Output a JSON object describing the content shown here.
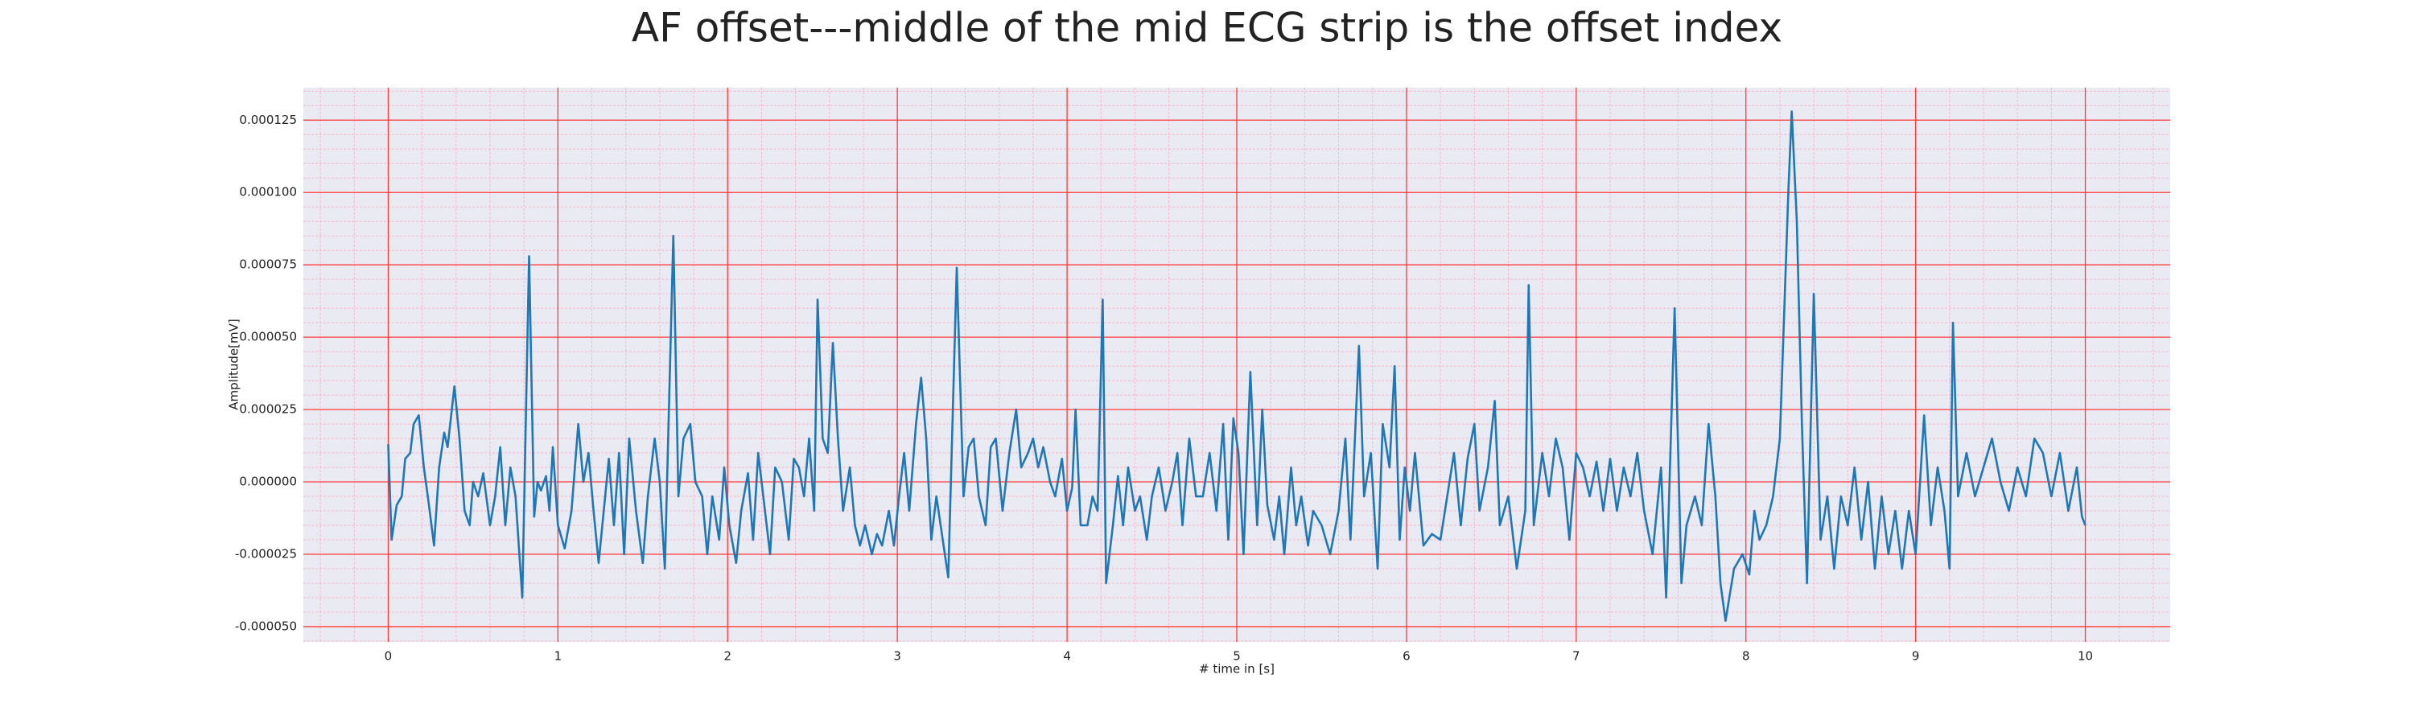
{
  "chart_data": {
    "type": "line",
    "title": "AF offset---middle of the mid ECG strip is the offset index",
    "xlabel": "# time in [s]",
    "ylabel": "Amplitude[mV]",
    "xlim": [
      -0.5,
      10.5
    ],
    "ylim": [
      -5.53e-05,
      0.0001362
    ],
    "xticks": [
      0,
      1,
      2,
      3,
      4,
      5,
      6,
      7,
      8,
      9,
      10
    ],
    "yticks": [
      {
        "value": -5e-05,
        "label": "-0.000050"
      },
      {
        "value": -2.5e-05,
        "label": "-0.000025"
      },
      {
        "value": 0,
        "label": "0.000000"
      },
      {
        "value": 2.5e-05,
        "label": "0.000025"
      },
      {
        "value": 5e-05,
        "label": "0.000050"
      },
      {
        "value": 7.5e-05,
        "label": "0.000075"
      },
      {
        "value": 0.0001,
        "label": "0.000100"
      },
      {
        "value": 0.000125,
        "label": "0.000125"
      }
    ],
    "grid": true,
    "grid_color": "#ff3b3b",
    "minor_grid": true,
    "minor_divisions": 5,
    "minor_grid_color": "#f7b6c8",
    "background": "#eaeaf2",
    "series": [
      {
        "color": "#1f77b4",
        "x": [
          0,
          0.02,
          0.05,
          0.08,
          0.1,
          0.13,
          0.15,
          0.18,
          0.21,
          0.24,
          0.27,
          0.3,
          0.33,
          0.35,
          0.39,
          0.42,
          0.45,
          0.48,
          0.5,
          0.53,
          0.56,
          0.6,
          0.63,
          0.66,
          0.69,
          0.72,
          0.75,
          0.79,
          0.83,
          0.86,
          0.88,
          0.9,
          0.93,
          0.95,
          0.97,
          1.0,
          1.04,
          1.08,
          1.12,
          1.15,
          1.18,
          1.21,
          1.24,
          1.27,
          1.3,
          1.33,
          1.36,
          1.39,
          1.42,
          1.46,
          1.5,
          1.53,
          1.57,
          1.6,
          1.63,
          1.68,
          1.71,
          1.74,
          1.78,
          1.81,
          1.85,
          1.88,
          1.91,
          1.95,
          1.98,
          2.01,
          2.05,
          2.08,
          2.12,
          2.15,
          2.18,
          2.21,
          2.25,
          2.28,
          2.32,
          2.36,
          2.39,
          2.42,
          2.45,
          2.48,
          2.51,
          2.53,
          2.56,
          2.59,
          2.62,
          2.65,
          2.68,
          2.72,
          2.75,
          2.78,
          2.81,
          2.85,
          2.88,
          2.91,
          2.95,
          2.98,
          3.01,
          3.04,
          3.07,
          3.11,
          3.14,
          3.17,
          3.2,
          3.23,
          3.3,
          3.35,
          3.39,
          3.42,
          3.45,
          3.48,
          3.52,
          3.55,
          3.58,
          3.62,
          3.66,
          3.7,
          3.73,
          3.77,
          3.8,
          3.83,
          3.86,
          3.9,
          3.93,
          3.97,
          4.0,
          4.03,
          4.05,
          4.08,
          4.12,
          4.15,
          4.18,
          4.21,
          4.23,
          4.27,
          4.3,
          4.33,
          4.36,
          4.4,
          4.43,
          4.47,
          4.5,
          4.54,
          4.58,
          4.62,
          4.65,
          4.68,
          4.72,
          4.76,
          4.8,
          4.84,
          4.88,
          4.92,
          4.95,
          4.98,
          5.01,
          5.04,
          5.08,
          5.12,
          5.15,
          5.18,
          5.22,
          5.25,
          5.28,
          5.32,
          5.35,
          5.38,
          5.42,
          5.45,
          5.5,
          5.55,
          5.6,
          5.64,
          5.67,
          5.72,
          5.75,
          5.79,
          5.83,
          5.86,
          5.9,
          5.93,
          5.96,
          5.99,
          6.02,
          6.05,
          6.1,
          6.15,
          6.2,
          6.24,
          6.28,
          6.32,
          6.36,
          6.4,
          6.43,
          6.48,
          6.52,
          6.55,
          6.6,
          6.65,
          6.7,
          6.72,
          6.75,
          6.8,
          6.84,
          6.88,
          6.92,
          6.96,
          7.0,
          7.04,
          7.08,
          7.12,
          7.16,
          7.2,
          7.24,
          7.28,
          7.32,
          7.36,
          7.4,
          7.45,
          7.5,
          7.53,
          7.58,
          7.62,
          7.65,
          7.7,
          7.74,
          7.78,
          7.82,
          7.85,
          7.88,
          7.93,
          7.98,
          8.02,
          8.05,
          8.08,
          8.12,
          8.16,
          8.2,
          8.25,
          8.27,
          8.3,
          8.33,
          8.36,
          8.4,
          8.44,
          8.48,
          8.52,
          8.56,
          8.6,
          8.64,
          8.68,
          8.72,
          8.76,
          8.8,
          8.84,
          8.88,
          8.92,
          8.96,
          9.0,
          9.05,
          9.09,
          9.13,
          9.17,
          9.2,
          9.22,
          9.25,
          9.3,
          9.35,
          9.4,
          9.45,
          9.5,
          9.55,
          9.6,
          9.65,
          9.7,
          9.75,
          9.8,
          9.85,
          9.9,
          9.95,
          9.98,
          10.0
        ],
        "values": [
          1.3e-05,
          -2e-05,
          -8e-06,
          -5e-06,
          8e-06,
          1e-05,
          2e-05,
          2.3e-05,
          5e-06,
          -8e-06,
          -2.2e-05,
          5e-06,
          1.7e-05,
          1.2e-05,
          3.3e-05,
          1.5e-05,
          -1e-05,
          -1.5e-05,
          0,
          -5e-06,
          3e-06,
          -1.5e-05,
          -5e-06,
          1.2e-05,
          -1.5e-05,
          5e-06,
          -5e-06,
          -4e-05,
          7.8e-05,
          -1.2e-05,
          0,
          -3e-06,
          2e-06,
          -1e-05,
          1.2e-05,
          -1.5e-05,
          -2.3e-05,
          -1e-05,
          2e-05,
          0,
          1e-05,
          -1e-05,
          -2.8e-05,
          -1e-05,
          8e-06,
          -1.5e-05,
          1e-05,
          -2.5e-05,
          1.5e-05,
          -1e-05,
          -2.8e-05,
          -5e-06,
          1.5e-05,
          0,
          -3e-05,
          8.5e-05,
          -5e-06,
          1.5e-05,
          2e-05,
          0,
          -5e-06,
          -2.5e-05,
          -5e-06,
          -2e-05,
          5e-06,
          -1.5e-05,
          -2.8e-05,
          -1e-05,
          3e-06,
          -2e-05,
          1e-05,
          -5e-06,
          -2.5e-05,
          5e-06,
          0,
          -2e-05,
          8e-06,
          5e-06,
          -5e-06,
          1.5e-05,
          -1e-05,
          6.3e-05,
          1.5e-05,
          1e-05,
          4.8e-05,
          1.5e-05,
          -1e-05,
          5e-06,
          -1.5e-05,
          -2.2e-05,
          -1.5e-05,
          -2.5e-05,
          -1.8e-05,
          -2.2e-05,
          -1e-05,
          -2.2e-05,
          -5e-06,
          1e-05,
          -1e-05,
          2e-05,
          3.6e-05,
          1.5e-05,
          -2e-05,
          -5e-06,
          -3.3e-05,
          7.4e-05,
          -5e-06,
          1.2e-05,
          1.5e-05,
          -5e-06,
          -1.5e-05,
          1.2e-05,
          1.5e-05,
          -1e-05,
          1e-05,
          2.5e-05,
          5e-06,
          1e-05,
          1.5e-05,
          5e-06,
          1.2e-05,
          0,
          -5e-06,
          8e-06,
          -1e-05,
          -2e-06,
          2.5e-05,
          -1.5e-05,
          -1.5e-05,
          -5e-06,
          -1e-05,
          6.3e-05,
          -3.5e-05,
          -1.5e-05,
          2e-06,
          -1.5e-05,
          5e-06,
          -1e-05,
          -5e-06,
          -2e-05,
          -5e-06,
          5e-06,
          -1e-05,
          0,
          1e-05,
          -1.5e-05,
          1.5e-05,
          -5e-06,
          -5e-06,
          1e-05,
          -1e-05,
          2e-05,
          -2e-05,
          2.2e-05,
          1e-05,
          -2.5e-05,
          3.8e-05,
          -1.5e-05,
          2.5e-05,
          -8e-06,
          -2e-05,
          -5e-06,
          -2.5e-05,
          5e-06,
          -1.5e-05,
          -5e-06,
          -2.2e-05,
          -1e-05,
          -1.5e-05,
          -2.5e-05,
          -1e-05,
          1.5e-05,
          -2e-05,
          4.7e-05,
          -5e-06,
          1e-05,
          -3e-05,
          2e-05,
          5e-06,
          4e-05,
          -2e-05,
          5e-06,
          -1e-05,
          1e-05,
          -2.2e-05,
          -1.8e-05,
          -2e-05,
          -5e-06,
          1e-05,
          -1.5e-05,
          8e-06,
          2e-05,
          -1e-05,
          5e-06,
          2.8e-05,
          -1.5e-05,
          -5e-06,
          -3e-05,
          -1e-05,
          6.8e-05,
          -1.5e-05,
          1e-05,
          -5e-06,
          1.5e-05,
          5e-06,
          -2e-05,
          1e-05,
          5e-06,
          -5e-06,
          7e-06,
          -1e-05,
          8e-06,
          -1e-05,
          5e-06,
          -5e-06,
          1e-05,
          -1e-05,
          -2.5e-05,
          5e-06,
          -4e-05,
          6e-05,
          -3.5e-05,
          -1.5e-05,
          -5e-06,
          -1.5e-05,
          2e-05,
          -5e-06,
          -3.5e-05,
          -4.8e-05,
          -3e-05,
          -2.5e-05,
          -3.2e-05,
          -1e-05,
          -2e-05,
          -1.5e-05,
          -5e-06,
          1.5e-05,
          0.0001,
          0.000128,
          9e-05,
          2e-05,
          -3.5e-05,
          6.5e-05,
          -2e-05,
          -5e-06,
          -3e-05,
          -5e-06,
          -1.5e-05,
          5e-06,
          -2e-05,
          0,
          -3e-05,
          -5e-06,
          -2.5e-05,
          -1e-05,
          -3e-05,
          -1e-05,
          -2.5e-05,
          2.3e-05,
          -1.5e-05,
          5e-06,
          -1e-05,
          -3e-05,
          5.5e-05,
          -5e-06,
          1e-05,
          -5e-06,
          5e-06,
          1.5e-05,
          0,
          -1e-05,
          5e-06,
          -5e-06,
          1.5e-05,
          1e-05,
          -5e-06,
          1e-05,
          -1e-05,
          5e-06,
          -1.2e-05,
          -1.5e-05
        ]
      }
    ]
  }
}
